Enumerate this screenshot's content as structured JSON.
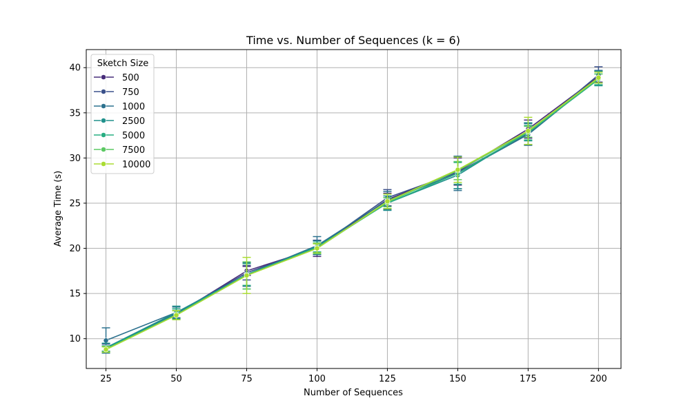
{
  "chart_data": {
    "type": "line",
    "title": "Time vs. Number of Sequences (k = 6)",
    "xlabel": "Number of Sequences",
    "ylabel": "Average Time (s)",
    "x": [
      25,
      50,
      75,
      100,
      125,
      150,
      175,
      200
    ],
    "xlim": [
      18,
      208
    ],
    "ylim": [
      6.7,
      42.0
    ],
    "xticks": [
      25,
      50,
      75,
      100,
      125,
      150,
      175,
      200
    ],
    "yticks": [
      10,
      15,
      20,
      25,
      30,
      35,
      40
    ],
    "grid": true,
    "legend": {
      "title": "Sketch Size",
      "placement": "upper-left"
    },
    "series": [
      {
        "name": "500",
        "color": "#472c7a",
        "values": [
          8.9,
          12.7,
          17.5,
          20.0,
          25.4,
          28.5,
          33.2,
          39.0
        ],
        "errors": [
          0.3,
          0.4,
          0.5,
          0.9,
          0.7,
          1.5,
          1.0,
          0.6
        ]
      },
      {
        "name": "750",
        "color": "#3b518b",
        "values": [
          9.0,
          12.8,
          17.3,
          20.1,
          25.6,
          28.4,
          32.7,
          39.2
        ],
        "errors": [
          0.4,
          0.5,
          0.8,
          0.8,
          0.9,
          1.8,
          1.2,
          0.9
        ]
      },
      {
        "name": "1000",
        "color": "#2c718e",
        "values": [
          9.8,
          12.9,
          17.1,
          20.3,
          25.3,
          28.3,
          32.6,
          38.9
        ],
        "errors": [
          1.4,
          0.6,
          1.3,
          1.0,
          1.0,
          1.9,
          1.2,
          0.8
        ]
      },
      {
        "name": "2500",
        "color": "#21918c",
        "values": [
          9.0,
          12.9,
          17.0,
          20.2,
          25.0,
          28.1,
          32.9,
          38.8
        ],
        "errors": [
          0.5,
          0.7,
          1.5,
          0.6,
          0.8,
          1.5,
          1.0,
          0.8
        ]
      },
      {
        "name": "5000",
        "color": "#27ad81",
        "values": [
          8.9,
          12.7,
          17.1,
          20.1,
          25.0,
          28.3,
          32.8,
          38.7
        ],
        "errors": [
          0.3,
          0.6,
          1.2,
          0.5,
          0.6,
          1.2,
          0.8,
          0.6
        ]
      },
      {
        "name": "7500",
        "color": "#5cc863",
        "values": [
          8.8,
          12.6,
          17.0,
          20.0,
          25.1,
          28.6,
          32.9,
          38.8
        ],
        "errors": [
          0.3,
          0.5,
          1.5,
          0.6,
          0.5,
          1.0,
          0.6,
          0.5
        ]
      },
      {
        "name": "10000",
        "color": "#aadc32",
        "values": [
          8.8,
          12.6,
          17.0,
          20.0,
          25.2,
          28.7,
          33.0,
          38.9
        ],
        "errors": [
          0.3,
          0.5,
          2.0,
          0.5,
          0.8,
          1.4,
          1.5,
          0.6
        ]
      }
    ]
  }
}
